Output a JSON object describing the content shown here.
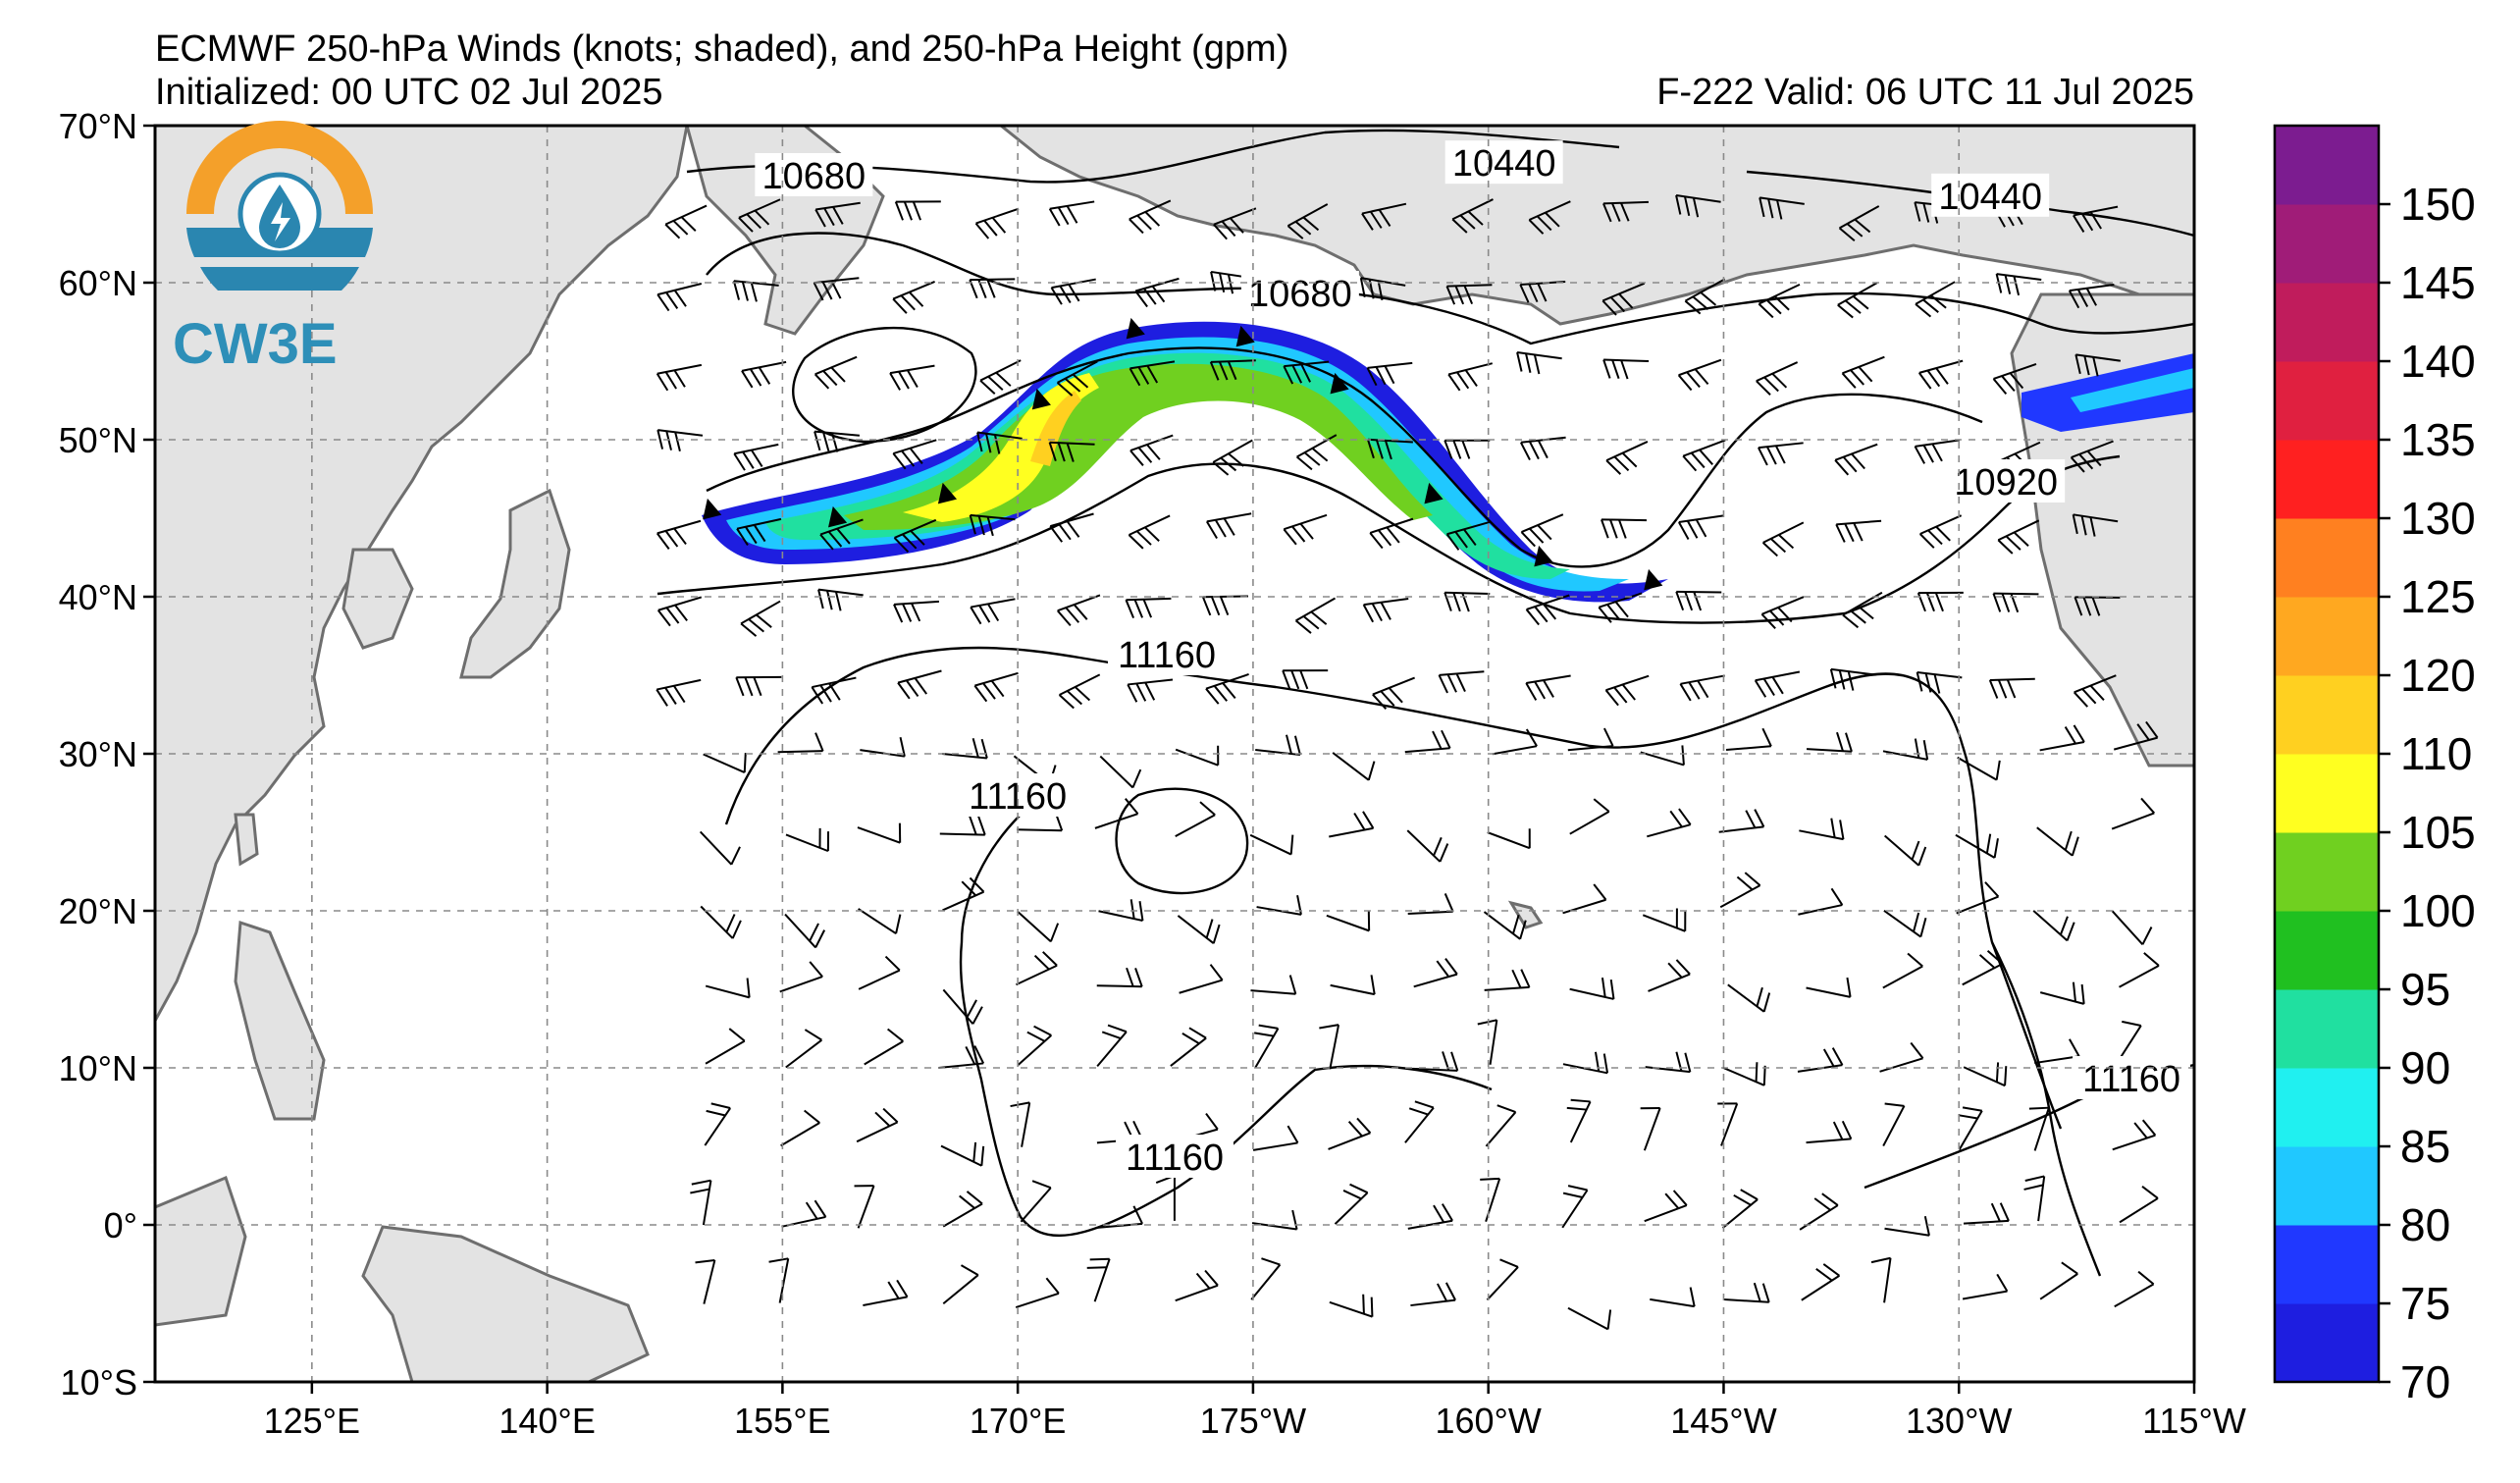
{
  "title": {
    "line1": "ECMWF 250-hPa Winds (knots; shaded), and 250-hPa Height (gpm)",
    "line2_left": "Initialized: 00 UTC 02 Jul 2025",
    "line2_right": "F-222  Valid: 06 UTC 11 Jul 2025"
  },
  "logo": {
    "text": "CW3E",
    "icon": "water-drop-lightning-logo-icon"
  },
  "map": {
    "extent": {
      "lon_west_e": 115,
      "lon_east_e": 245,
      "lat_south": -10,
      "lat_north": 70
    },
    "lat_ticks": [
      {
        "lat": 70,
        "label": "70°N"
      },
      {
        "lat": 60,
        "label": "60°N"
      },
      {
        "lat": 50,
        "label": "50°N"
      },
      {
        "lat": 40,
        "label": "40°N"
      },
      {
        "lat": 30,
        "label": "30°N"
      },
      {
        "lat": 20,
        "label": "20°N"
      },
      {
        "lat": 10,
        "label": "10°N"
      },
      {
        "lat": 0,
        "label": "0°"
      },
      {
        "lat": -10,
        "label": "10°S"
      }
    ],
    "lon_ticks": [
      {
        "lon": 125,
        "label": "125°E"
      },
      {
        "lon": 140,
        "label": "140°E"
      },
      {
        "lon": 155,
        "label": "155°E"
      },
      {
        "lon": 170,
        "label": "170°E"
      },
      {
        "lon": 185,
        "label": "175°W"
      },
      {
        "lon": 200,
        "label": "160°W"
      },
      {
        "lon": 215,
        "label": "145°W"
      },
      {
        "lon": 230,
        "label": "130°W"
      },
      {
        "lon": 245,
        "label": "115°W"
      }
    ],
    "grid_lines": "dashed",
    "colors": {
      "land": "#e3e3e3",
      "coast": "#6e6e6e",
      "contour": "#000000"
    },
    "height_contour_labels": [
      {
        "value": "10680",
        "lon": 157,
        "lat": 66.5
      },
      {
        "value": "10440",
        "lon": 201,
        "lat": 67.3
      },
      {
        "value": "10440",
        "lon": 232,
        "lat": 65.2
      },
      {
        "value": "10680",
        "lon": 188,
        "lat": 59
      },
      {
        "value": "10920",
        "lon": 233,
        "lat": 47
      },
      {
        "value": "11160",
        "lon": 179.5,
        "lat": 36
      },
      {
        "value": "11160",
        "lon": 170,
        "lat": 27
      },
      {
        "value": "11160",
        "lon": 180,
        "lat": 4
      },
      {
        "value": "11160",
        "lon": 241,
        "lat": 9
      }
    ],
    "jet_streak": {
      "max_knots": "110",
      "axis": [
        [
          150,
          45
        ],
        [
          158,
          44.5
        ],
        [
          165,
          46
        ],
        [
          171,
          52
        ],
        [
          177,
          56.5
        ],
        [
          184,
          56
        ],
        [
          190,
          53
        ],
        [
          196,
          46
        ],
        [
          203,
          42
        ],
        [
          210,
          40.5
        ]
      ]
    }
  },
  "colorbar": {
    "levels": [
      "70",
      "75",
      "80",
      "85",
      "90",
      "95",
      "100",
      "105",
      "110",
      "120",
      "125",
      "130",
      "135",
      "140",
      "145",
      "150"
    ],
    "colors": [
      "#1e1ee0",
      "#2038ff",
      "#20c8ff",
      "#20f0f0",
      "#20e0a0",
      "#20c020",
      "#70d020",
      "#ffff20",
      "#ffd020",
      "#ffa820",
      "#ff8020",
      "#ff2020",
      "#e02040",
      "#c01c5c",
      "#a01c78",
      "#7c1c90"
    ]
  }
}
